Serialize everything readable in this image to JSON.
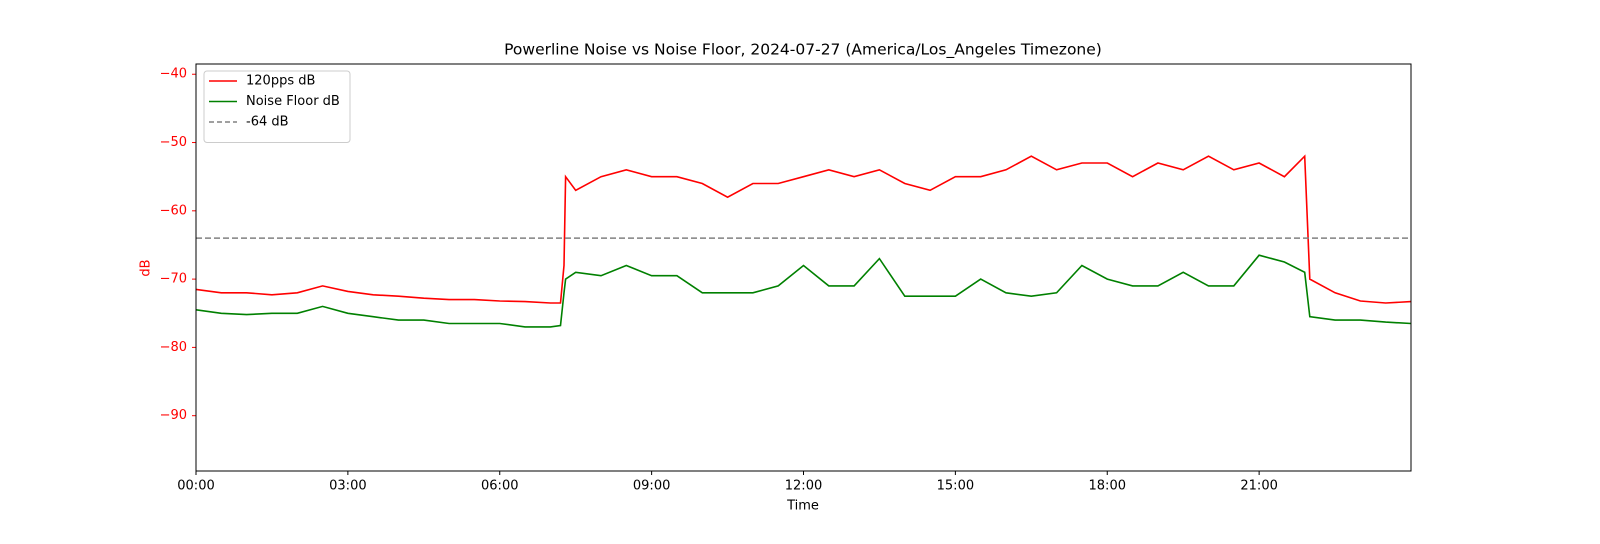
{
  "chart_data": {
    "type": "line",
    "title": "Powerline Noise vs Noise Floor, 2024-07-27 (America/Los_Angeles Timezone)",
    "x_label": "Time",
    "y_label": "dB",
    "y_label_color": "#ff0000",
    "x": [
      0,
      0.5,
      1,
      1.5,
      2,
      2.5,
      3,
      3.5,
      4,
      4.5,
      5,
      5.5,
      6,
      6.5,
      7,
      7.2,
      7.27,
      7.3,
      7.5,
      8,
      8.5,
      9,
      9.5,
      10,
      10.5,
      11,
      11.5,
      12,
      12.5,
      13,
      13.5,
      14,
      14.5,
      15,
      15.5,
      16,
      16.5,
      17,
      17.5,
      18,
      18.5,
      19,
      19.5,
      20,
      20.5,
      21,
      21.5,
      21.9,
      22,
      22.5,
      23,
      23.5,
      24
    ],
    "series": [
      {
        "name": "120pps dB",
        "color": "#ff0000",
        "values": [
          -71.5,
          -72,
          -72,
          -72.3,
          -72,
          -71,
          -71.8,
          -72.3,
          -72.5,
          -72.8,
          -73,
          -73,
          -73.2,
          -73.3,
          -73.5,
          -73.5,
          -68,
          -55,
          -57,
          -55,
          -54,
          -55,
          -55,
          -56,
          -58,
          -56,
          -56,
          -55,
          -54,
          -55,
          -54,
          -56,
          -57,
          -55,
          -55,
          -54,
          -52,
          -54,
          -53,
          -53,
          -55,
          -53,
          -54,
          -52,
          -54,
          -53,
          -55,
          -52,
          -70,
          -72,
          -73.2,
          -73.5,
          -73.3
        ]
      },
      {
        "name": "Noise Floor dB",
        "color": "#008000",
        "values": [
          -74.5,
          -75,
          -75.2,
          -75,
          -75,
          -74,
          -75,
          -75.5,
          -76,
          -76,
          -76.5,
          -76.5,
          -76.5,
          -77,
          -77,
          -76.8,
          -72,
          -70,
          -69,
          -69.5,
          -68,
          -69.5,
          -69.5,
          -72,
          -72,
          -72,
          -71,
          -68,
          -71,
          -71,
          -67,
          -72.5,
          -72.5,
          -72.5,
          -70,
          -72,
          -72.5,
          -72,
          -68,
          -70,
          -71,
          -71,
          -69,
          -71,
          -71,
          -66.5,
          -67.5,
          -69,
          -75.5,
          -76,
          -76,
          -76.3,
          -76.5
        ]
      }
    ],
    "reference_line": {
      "name": "-64 dB",
      "value": -64,
      "color": "#808080",
      "dashed": true
    },
    "legend": "upper left",
    "xlim": [
      0,
      24
    ],
    "xticks": [
      {
        "value": 0,
        "label": "00:00"
      },
      {
        "value": 3,
        "label": "03:00"
      },
      {
        "value": 6,
        "label": "06:00"
      },
      {
        "value": 9,
        "label": "09:00"
      },
      {
        "value": 12,
        "label": "12:00"
      },
      {
        "value": 15,
        "label": "15:00"
      },
      {
        "value": 18,
        "label": "18:00"
      },
      {
        "value": 21,
        "label": "21:00"
      }
    ],
    "ylim": [
      -98.1,
      -38.5
    ],
    "yticks": [
      {
        "value": -90,
        "label": "−90"
      },
      {
        "value": -80,
        "label": "−80"
      },
      {
        "value": -70,
        "label": "−70"
      },
      {
        "value": -60,
        "label": "−60"
      },
      {
        "value": -50,
        "label": "−50"
      },
      {
        "value": -40,
        "label": "−40"
      }
    ],
    "ytick_color": "#ff0000"
  }
}
